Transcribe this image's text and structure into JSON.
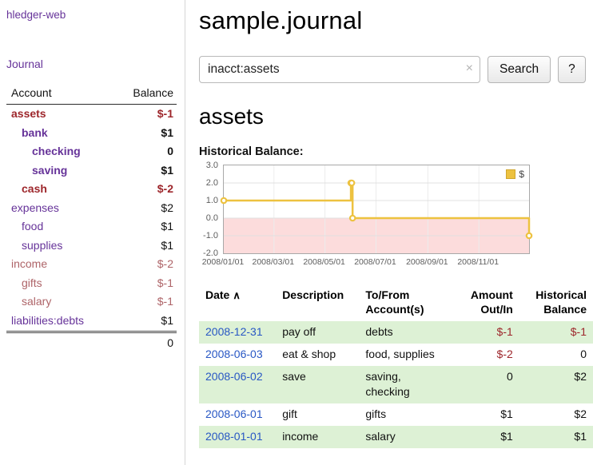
{
  "colors": {
    "link_purple": "#663399",
    "negative_red": "#9d262b",
    "negative_muted_red": "#ae6468",
    "date_link_blue": "#2857c4",
    "row_green": "#ddf1d5",
    "chart_line_gold": "#edc240",
    "chart_negative_region_pink": "#fcdcdc"
  },
  "icons": {
    "clear_search": "×",
    "sort_ascending": "∧"
  },
  "sidebar": {
    "app_title": "hledger-web",
    "nav": [
      {
        "label": "Journal"
      }
    ],
    "accounts": {
      "header": {
        "account": "Account",
        "balance": "Balance"
      },
      "rows": [
        {
          "name": "assets",
          "level": 1,
          "bold": true,
          "balance": "$-1"
        },
        {
          "name": "bank",
          "level": 2,
          "bold": true,
          "balance": "$1"
        },
        {
          "name": "checking",
          "level": 3,
          "bold": true,
          "balance": "0"
        },
        {
          "name": "saving",
          "level": 3,
          "bold": true,
          "balance": "$1"
        },
        {
          "name": "cash",
          "level": 2,
          "bold": true,
          "balance": "$-2"
        },
        {
          "name": "expenses",
          "level": 1,
          "bold": false,
          "balance": "$2"
        },
        {
          "name": "food",
          "level": 2,
          "bold": false,
          "balance": "$1"
        },
        {
          "name": "supplies",
          "level": 2,
          "bold": false,
          "balance": "$1"
        },
        {
          "name": "income",
          "level": 1,
          "bold": false,
          "balance": "$-2"
        },
        {
          "name": "gifts",
          "level": 2,
          "bold": false,
          "balance": "$-1"
        },
        {
          "name": "salary",
          "level": 2,
          "bold": false,
          "balance": "$-1"
        },
        {
          "name": "liabilities:debts",
          "level": 1,
          "bold": false,
          "balance": "$1"
        }
      ],
      "total": "0"
    }
  },
  "main": {
    "title": "sample.journal",
    "search": {
      "value": "inacct:assets",
      "button_label": "Search",
      "help_label": "?"
    },
    "account_heading": "assets",
    "chart_label": "Historical Balance:",
    "register": {
      "columns": {
        "date": "Date",
        "description": "Description",
        "tofrom_line1": "To/From",
        "tofrom_line2": "Account(s)",
        "amount_line1": "Amount",
        "amount_line2": "Out/In",
        "balance_line1": "Historical",
        "balance_line2": "Balance"
      },
      "rows": [
        {
          "date": "2008-12-31",
          "description": "pay off",
          "accounts": "debts",
          "amount": "$-1",
          "balance": "$-1"
        },
        {
          "date": "2008-06-03",
          "description": "eat & shop",
          "accounts": "food, supplies",
          "amount": "$-2",
          "balance": "0"
        },
        {
          "date": "2008-06-02",
          "description": "save",
          "accounts": "saving, checking",
          "amount": "0",
          "balance": "$2"
        },
        {
          "date": "2008-06-01",
          "description": "gift",
          "accounts": "gifts",
          "amount": "$1",
          "balance": "$2"
        },
        {
          "date": "2008-01-01",
          "description": "income",
          "accounts": "salary",
          "amount": "$1",
          "balance": "$1"
        }
      ]
    }
  },
  "chart_data": {
    "type": "line",
    "title": "Historical Balance:",
    "legend": [
      {
        "label": "$",
        "color": "#edc240"
      }
    ],
    "legend_position": "top-right",
    "grid": true,
    "x_range": [
      "2008-01-01",
      "2008-12-31"
    ],
    "ylim": [
      -2,
      3
    ],
    "yticks": [
      "3.0",
      "2.0",
      "1.0",
      "0.0",
      "-1.0",
      "-2.0"
    ],
    "xticks": [
      "2008/01/01",
      "2008/03/01",
      "2008/05/01",
      "2008/07/01",
      "2008/09/01",
      "2008/11/01"
    ],
    "series": [
      {
        "name": "$",
        "color": "#edc240",
        "step": true,
        "points": [
          {
            "x": "2008-01-01",
            "y": 1
          },
          {
            "x": "2008-06-01",
            "y": 2
          },
          {
            "x": "2008-06-02",
            "y": 2
          },
          {
            "x": "2008-06-03",
            "y": 0
          },
          {
            "x": "2008-12-31",
            "y": -1
          }
        ]
      }
    ],
    "negative_region": {
      "from": 0,
      "to": -2,
      "color": "#fcdcdc"
    }
  }
}
